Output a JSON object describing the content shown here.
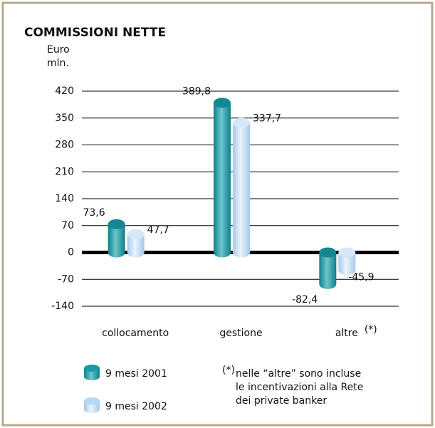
{
  "chart_data": {
    "type": "bar",
    "title": "COMMISSIONI NETTE",
    "y_label": [
      "Euro",
      "mln."
    ],
    "categories": [
      "collocamento",
      "gestione",
      "altre"
    ],
    "category_note": "(*)",
    "series": [
      {
        "name": "9 mesi 2001",
        "color": "#1a9aa6",
        "values": [
          73.6,
          389.8,
          -82.4
        ],
        "value_labels": [
          "73,6",
          "389,8",
          "-82,4"
        ]
      },
      {
        "name": "9 mesi 2002",
        "color": "#b9d7f2",
        "values": [
          47.7,
          337.7,
          -45.9
        ],
        "value_labels": [
          "47,7",
          "337,7",
          "-45,9"
        ]
      }
    ],
    "ylim": [
      -140,
      420
    ],
    "yticks": [
      -140,
      -70,
      0,
      70,
      140,
      210,
      280,
      350,
      420
    ],
    "grid": true,
    "note": {
      "mark": "(*)",
      "lines": [
        "nelle “altre” sono incluse",
        "le incentivazioni alla Rete",
        "dei private banker"
      ]
    }
  }
}
